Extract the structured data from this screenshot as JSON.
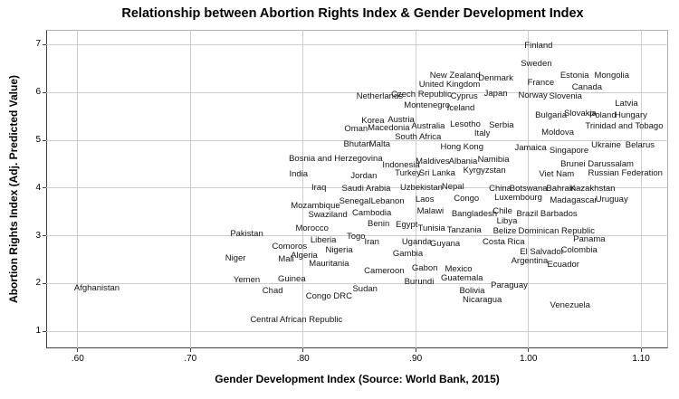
{
  "colors": {
    "background": "#ffffff",
    "grid": "#cdcdcd",
    "frame_dark": "#3f3f3f",
    "frame_light": "#b3b3b3",
    "text": "#000000",
    "label_text": "#141414"
  },
  "chart_data": {
    "type": "scatter",
    "title": "Relationship between Abortion Rights Index & Gender Development Index",
    "xlabel": "Gender Development Index (Source: World Bank, 2015)",
    "ylabel": "Abortion Rights Index (Adj. Predicted Value)",
    "legend": "none",
    "grid": true,
    "marker_style": "text-labels-only",
    "xlim": [
      0.572,
      1.124
    ],
    "ylim": [
      0.646,
      7.31
    ],
    "x_axis": {
      "tick_labels": [
        ".60",
        ".70",
        ".80",
        ".90",
        "1.00",
        "1.10"
      ],
      "tick_values": [
        0.6,
        0.7,
        0.8,
        0.9,
        1.0,
        1.1
      ]
    },
    "y_axis": {
      "tick_labels": [
        "1",
        "2",
        "3",
        "4",
        "5",
        "6",
        "7"
      ],
      "tick_values": [
        1,
        2,
        3,
        4,
        5,
        6,
        7
      ]
    },
    "points": [
      {
        "name": "Finland",
        "x": 1.009,
        "y": 6.97
      },
      {
        "name": "Sweden",
        "x": 1.007,
        "y": 6.59
      },
      {
        "name": "New Zealand",
        "x": 0.935,
        "y": 6.35
      },
      {
        "name": "Denmark",
        "x": 0.971,
        "y": 6.29
      },
      {
        "name": "Estonia",
        "x": 1.041,
        "y": 6.35
      },
      {
        "name": "Mongolia",
        "x": 1.074,
        "y": 6.35
      },
      {
        "name": "United Kingdom",
        "x": 0.93,
        "y": 6.16
      },
      {
        "name": "France",
        "x": 1.011,
        "y": 6.19
      },
      {
        "name": "Canada",
        "x": 1.052,
        "y": 6.1
      },
      {
        "name": "Netherlands",
        "x": 0.868,
        "y": 5.91
      },
      {
        "name": "Czech Republic",
        "x": 0.905,
        "y": 5.95
      },
      {
        "name": "Cyprus",
        "x": 0.943,
        "y": 5.91
      },
      {
        "name": "Japan",
        "x": 0.971,
        "y": 5.97
      },
      {
        "name": "Norway",
        "x": 1.004,
        "y": 5.93
      },
      {
        "name": "Slovenia",
        "x": 1.033,
        "y": 5.91
      },
      {
        "name": "Montenegro",
        "x": 0.91,
        "y": 5.72
      },
      {
        "name": "Iceland",
        "x": 0.94,
        "y": 5.66
      },
      {
        "name": "Latvia",
        "x": 1.087,
        "y": 5.76
      },
      {
        "name": "Bulgaria",
        "x": 1.02,
        "y": 5.51
      },
      {
        "name": "Slovakia",
        "x": 1.046,
        "y": 5.55
      },
      {
        "name": "Poland",
        "x": 1.066,
        "y": 5.51
      },
      {
        "name": "Hungary",
        "x": 1.091,
        "y": 5.51
      },
      {
        "name": "Korea",
        "x": 0.862,
        "y": 5.4
      },
      {
        "name": "Austria",
        "x": 0.887,
        "y": 5.42
      },
      {
        "name": "Australia",
        "x": 0.911,
        "y": 5.29
      },
      {
        "name": "Lesotho",
        "x": 0.944,
        "y": 5.32
      },
      {
        "name": "Serbia",
        "x": 0.976,
        "y": 5.3
      },
      {
        "name": "Trinidad and Tobago",
        "x": 1.085,
        "y": 5.29
      },
      {
        "name": "Oman",
        "x": 0.847,
        "y": 5.23
      },
      {
        "name": "Macedonia",
        "x": 0.876,
        "y": 5.25
      },
      {
        "name": "Moldova",
        "x": 1.026,
        "y": 5.15
      },
      {
        "name": "Italy",
        "x": 0.959,
        "y": 5.13
      },
      {
        "name": "South Africa",
        "x": 0.902,
        "y": 5.06
      },
      {
        "name": "Bhutan",
        "x": 0.848,
        "y": 4.91
      },
      {
        "name": "Malta",
        "x": 0.868,
        "y": 4.91
      },
      {
        "name": "Hong Kong",
        "x": 0.941,
        "y": 4.85
      },
      {
        "name": "Ukraine",
        "x": 1.069,
        "y": 4.89
      },
      {
        "name": "Belarus",
        "x": 1.099,
        "y": 4.89
      },
      {
        "name": "Jamaica",
        "x": 1.002,
        "y": 4.83
      },
      {
        "name": "Singapore",
        "x": 1.036,
        "y": 4.77
      },
      {
        "name": "Bosnia and Herzegovina",
        "x": 0.829,
        "y": 4.6
      },
      {
        "name": "Indonesia",
        "x": 0.887,
        "y": 4.47
      },
      {
        "name": "Maldives",
        "x": 0.915,
        "y": 4.55
      },
      {
        "name": "Albania",
        "x": 0.942,
        "y": 4.55
      },
      {
        "name": "Namibia",
        "x": 0.969,
        "y": 4.59
      },
      {
        "name": "Brunei Darussalam",
        "x": 1.061,
        "y": 4.49
      },
      {
        "name": "India",
        "x": 0.796,
        "y": 4.28
      },
      {
        "name": "Jordan",
        "x": 0.854,
        "y": 4.24
      },
      {
        "name": "Turkey",
        "x": 0.893,
        "y": 4.3
      },
      {
        "name": "Sri Lanka",
        "x": 0.919,
        "y": 4.3
      },
      {
        "name": "Kyrgyzstan",
        "x": 0.961,
        "y": 4.36
      },
      {
        "name": "Viet Nam",
        "x": 1.025,
        "y": 4.28
      },
      {
        "name": "Russian Federation",
        "x": 1.086,
        "y": 4.3
      },
      {
        "name": "Iraq",
        "x": 0.814,
        "y": 4.0
      },
      {
        "name": "Saudi Arabia",
        "x": 0.856,
        "y": 3.98
      },
      {
        "name": "Uzbekistan",
        "x": 0.905,
        "y": 4.0
      },
      {
        "name": "Nepal",
        "x": 0.933,
        "y": 4.02
      },
      {
        "name": "China",
        "x": 0.975,
        "y": 3.98
      },
      {
        "name": "Botswana",
        "x": 1.0,
        "y": 3.98
      },
      {
        "name": "Bahrain",
        "x": 1.029,
        "y": 3.98
      },
      {
        "name": "Kazakhstan",
        "x": 1.057,
        "y": 3.98
      },
      {
        "name": "Mozambique",
        "x": 0.811,
        "y": 3.62
      },
      {
        "name": "Senegal",
        "x": 0.846,
        "y": 3.71
      },
      {
        "name": "Lebanon",
        "x": 0.875,
        "y": 3.71
      },
      {
        "name": "Laos",
        "x": 0.908,
        "y": 3.75
      },
      {
        "name": "Congo",
        "x": 0.945,
        "y": 3.77
      },
      {
        "name": "Luxembourg",
        "x": 0.991,
        "y": 3.79
      },
      {
        "name": "Madagascar",
        "x": 1.04,
        "y": 3.73
      },
      {
        "name": "Uruguay",
        "x": 1.074,
        "y": 3.75
      },
      {
        "name": "Swaziland",
        "x": 0.822,
        "y": 3.43
      },
      {
        "name": "Cambodia",
        "x": 0.861,
        "y": 3.47
      },
      {
        "name": "Malawi",
        "x": 0.913,
        "y": 3.51
      },
      {
        "name": "Bangladesh",
        "x": 0.952,
        "y": 3.45
      },
      {
        "name": "Chile",
        "x": 0.977,
        "y": 3.51
      },
      {
        "name": "Brazil",
        "x": 0.999,
        "y": 3.45
      },
      {
        "name": "Barbados",
        "x": 1.027,
        "y": 3.45
      },
      {
        "name": "Libya",
        "x": 0.981,
        "y": 3.3
      },
      {
        "name": "Morocco",
        "x": 0.808,
        "y": 3.15
      },
      {
        "name": "Benin",
        "x": 0.867,
        "y": 3.24
      },
      {
        "name": "Egypt",
        "x": 0.892,
        "y": 3.22
      },
      {
        "name": "Tunisia",
        "x": 0.914,
        "y": 3.15
      },
      {
        "name": "Tanzania",
        "x": 0.943,
        "y": 3.11
      },
      {
        "name": "Belize",
        "x": 0.979,
        "y": 3.09
      },
      {
        "name": "Dominican Republic",
        "x": 1.025,
        "y": 3.09
      },
      {
        "name": "Pakistan",
        "x": 0.75,
        "y": 3.03
      },
      {
        "name": "Liberia",
        "x": 0.818,
        "y": 2.9
      },
      {
        "name": "Togo",
        "x": 0.847,
        "y": 2.98
      },
      {
        "name": "Iran",
        "x": 0.861,
        "y": 2.86
      },
      {
        "name": "Uganda",
        "x": 0.901,
        "y": 2.86
      },
      {
        "name": "Guyana",
        "x": 0.926,
        "y": 2.82
      },
      {
        "name": "Costa Rica",
        "x": 0.978,
        "y": 2.86
      },
      {
        "name": "Panama",
        "x": 1.054,
        "y": 2.92
      },
      {
        "name": "Comoros",
        "x": 0.788,
        "y": 2.77
      },
      {
        "name": "Nigeria",
        "x": 0.832,
        "y": 2.69
      },
      {
        "name": "Gambia",
        "x": 0.893,
        "y": 2.62
      },
      {
        "name": "El Salvador",
        "x": 1.012,
        "y": 2.65
      },
      {
        "name": "Colombia",
        "x": 1.045,
        "y": 2.69
      },
      {
        "name": "Niger",
        "x": 0.74,
        "y": 2.52
      },
      {
        "name": "Mali",
        "x": 0.785,
        "y": 2.5
      },
      {
        "name": "Algeria",
        "x": 0.801,
        "y": 2.58
      },
      {
        "name": "Mauritania",
        "x": 0.823,
        "y": 2.41
      },
      {
        "name": "Argentina",
        "x": 1.001,
        "y": 2.46
      },
      {
        "name": "Ecuador",
        "x": 1.031,
        "y": 2.39
      },
      {
        "name": "Cameroon",
        "x": 0.872,
        "y": 2.26
      },
      {
        "name": "Gabon",
        "x": 0.908,
        "y": 2.31
      },
      {
        "name": "Mexico",
        "x": 0.938,
        "y": 2.29
      },
      {
        "name": "Guatemala",
        "x": 0.941,
        "y": 2.1
      },
      {
        "name": "Yemen",
        "x": 0.75,
        "y": 2.07
      },
      {
        "name": "Guinea",
        "x": 0.79,
        "y": 2.09
      },
      {
        "name": "Burundi",
        "x": 0.903,
        "y": 2.03
      },
      {
        "name": "Chad",
        "x": 0.773,
        "y": 1.84
      },
      {
        "name": "Sudan",
        "x": 0.855,
        "y": 1.88
      },
      {
        "name": "Paraguay",
        "x": 0.983,
        "y": 1.95
      },
      {
        "name": "Bolivia",
        "x": 0.95,
        "y": 1.84
      },
      {
        "name": "Congo DRC",
        "x": 0.823,
        "y": 1.73
      },
      {
        "name": "Nicaragua",
        "x": 0.959,
        "y": 1.65
      },
      {
        "name": "Afghanistan",
        "x": 0.617,
        "y": 1.9
      },
      {
        "name": "Venezuela",
        "x": 1.037,
        "y": 1.54
      },
      {
        "name": "Central African Republic",
        "x": 0.794,
        "y": 1.23
      }
    ]
  }
}
